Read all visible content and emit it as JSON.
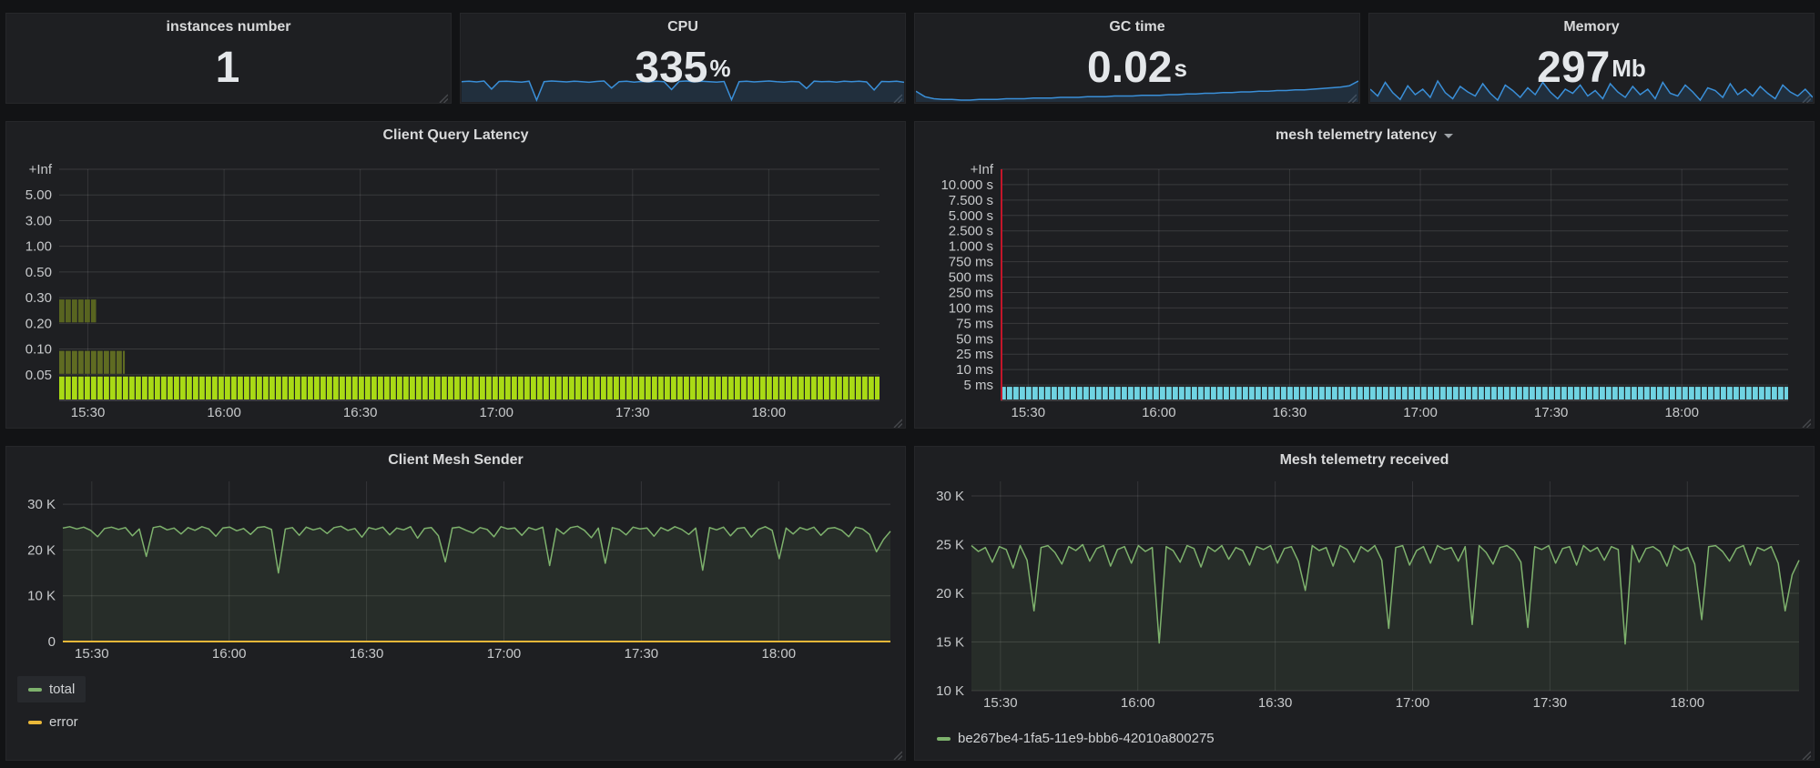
{
  "time_axis": {
    "labels": [
      "15:30",
      "16:00",
      "16:30",
      "17:00",
      "17:30",
      "18:00"
    ],
    "fracs": [
      0.035,
      0.201,
      0.367,
      0.533,
      0.699,
      0.865
    ]
  },
  "chart_data": [
    {
      "type": "stat",
      "id": "instances_number",
      "title": "instances number",
      "value": "1",
      "unit": "",
      "color": "#3a8fd8",
      "fill": "rgba(51,120,190,0.18)",
      "spark": []
    },
    {
      "type": "stat",
      "id": "cpu",
      "title": "CPU",
      "value": "335",
      "unit": "%",
      "color": "#3a8fd8",
      "fill": "rgba(51,120,190,0.18)",
      "spark": [
        334,
        336,
        333,
        337,
        300,
        335,
        336,
        334,
        332,
        336,
        250,
        334,
        337,
        335,
        333,
        336,
        334,
        331,
        335,
        337,
        305,
        334,
        336,
        332,
        335,
        333,
        336,
        334,
        298,
        335,
        337,
        333,
        336,
        334,
        332,
        335,
        252,
        334,
        336,
        333,
        335,
        337,
        334,
        332,
        335,
        333,
        303,
        336,
        334,
        335,
        332,
        336,
        334,
        336,
        333,
        296,
        335,
        334,
        336,
        331
      ]
    },
    {
      "type": "stat",
      "id": "gc_time",
      "title": "GC time",
      "value": "0.02",
      "unit": "s",
      "color": "#3a8fd8",
      "fill": "rgba(51,120,190,0.18)",
      "spark": [
        0.03,
        0.022,
        0.019,
        0.018,
        0.018,
        0.017,
        0.017,
        0.018,
        0.018,
        0.018,
        0.019,
        0.019,
        0.019,
        0.02,
        0.02,
        0.02,
        0.021,
        0.021,
        0.021,
        0.022,
        0.022,
        0.022,
        0.023,
        0.023,
        0.023,
        0.024,
        0.024,
        0.024,
        0.025,
        0.025,
        0.026,
        0.026,
        0.027,
        0.027,
        0.028,
        0.028,
        0.029,
        0.029,
        0.03,
        0.03,
        0.031,
        0.031,
        0.032,
        0.032,
        0.033,
        0.034,
        0.035,
        0.036,
        0.038,
        0.045
      ]
    },
    {
      "type": "stat",
      "id": "memory",
      "title": "Memory",
      "value": "297",
      "unit": "Mb",
      "color": "#3a8fd8",
      "fill": "rgba(51,120,190,0.18)",
      "spark": [
        300,
        290,
        310,
        295,
        285,
        305,
        292,
        300,
        288,
        312,
        295,
        286,
        304,
        296,
        290,
        308,
        294,
        284,
        306,
        298,
        288,
        302,
        292,
        310,
        296,
        286,
        300,
        294,
        306,
        290,
        298,
        286,
        308,
        296,
        288,
        304,
        292,
        300,
        286,
        310,
        294,
        290,
        306,
        296,
        284,
        302,
        298,
        288,
        308,
        292,
        300,
        290,
        304,
        294,
        286,
        306,
        296,
        290,
        300,
        288
      ]
    },
    {
      "type": "heatmap",
      "id": "client_query_latency",
      "title": "Client Query Latency",
      "has_dropdown": false,
      "y_labels": [
        "+Inf",
        "5.00",
        "3.00",
        "1.00",
        "0.50",
        "0.30",
        "0.20",
        "0.10",
        "0.05"
      ],
      "bands": [
        {
          "gap": 0,
          "x0": 0,
          "x1": 1,
          "color": "#a9da15",
          "bucket": "<= 0.05"
        },
        {
          "gap": 1,
          "x0": 0,
          "x1": 0.08,
          "color": "#5f6b22",
          "bucket": "0.05 - 0.10"
        },
        {
          "gap": 3,
          "x0": 0,
          "x1": 0.045,
          "color": "#586420",
          "bucket": "0.20 - 0.30"
        }
      ],
      "axis_line_color": null
    },
    {
      "type": "heatmap",
      "id": "mesh_telemetry_latency",
      "title": "mesh telemetry latency",
      "has_dropdown": true,
      "y_labels": [
        "+Inf",
        "10.000 s",
        "7.500 s",
        "5.000 s",
        "2.500 s",
        "1.000 s",
        "750 ms",
        "500 ms",
        "250 ms",
        "100 ms",
        "75 ms",
        "50 ms",
        "25 ms",
        "10 ms",
        "5 ms"
      ],
      "bands": [
        {
          "gap": 0,
          "x0": 0,
          "x1": 1,
          "color": "#6fd3e2",
          "bucket": "<= 5 ms"
        }
      ],
      "axis_line_color": "#c4162a"
    },
    {
      "type": "line",
      "id": "client_mesh_sender",
      "title": "Client Mesh Sender",
      "ylabel_unit": "K",
      "ylim": [
        0,
        35
      ],
      "y_ticks": [
        {
          "v": 0,
          "label": "0"
        },
        {
          "v": 10,
          "label": "10 K"
        },
        {
          "v": 20,
          "label": "20 K"
        },
        {
          "v": 30,
          "label": "30 K"
        }
      ],
      "series": [
        {
          "name": "total",
          "color": "#7eb26d",
          "fill": "rgba(126,178,109,0.10)",
          "width": 1.5,
          "values": [
            24.8,
            25.1,
            24.6,
            25.0,
            24.3,
            22.9,
            24.7,
            25.0,
            24.5,
            24.9,
            23.1,
            24.6,
            18.6,
            24.9,
            25.2,
            24.4,
            24.8,
            23.5,
            24.9,
            24.3,
            25.1,
            24.6,
            23.0,
            24.8,
            25.0,
            24.2,
            24.7,
            23.4,
            24.9,
            25.1,
            24.5,
            15.0,
            24.6,
            24.9,
            23.2,
            25.0,
            24.4,
            24.8,
            23.6,
            24.9,
            25.2,
            24.3,
            24.7,
            22.8,
            24.9,
            24.5,
            25.0,
            23.3,
            24.8,
            24.4,
            25.1,
            22.6,
            24.7,
            24.9,
            23.1,
            17.4,
            24.8,
            25.0,
            24.3,
            23.7,
            24.9,
            24.5,
            22.9,
            25.1,
            24.6,
            24.8,
            23.2,
            24.9,
            24.4,
            25.0,
            16.6,
            24.7,
            23.5,
            24.9,
            25.2,
            24.3,
            22.7,
            24.8,
            17.1,
            24.9,
            24.5,
            23.3,
            25.0,
            24.6,
            24.8,
            23.0,
            24.9,
            24.2,
            25.1,
            24.5,
            23.4,
            24.8,
            15.6,
            24.9,
            24.4,
            25.0,
            23.1,
            24.7,
            24.9,
            22.8,
            24.5,
            25.1,
            24.3,
            18.1,
            24.8,
            23.5,
            24.9,
            24.4,
            25.0,
            23.2,
            24.7,
            24.9,
            24.3,
            22.9,
            25.0,
            24.6,
            23.4,
            19.6,
            22.3,
            24.1
          ]
        },
        {
          "name": "error",
          "color": "#eab839",
          "fill": null,
          "width": 2,
          "values": [
            0,
            0
          ]
        }
      ],
      "legend": [
        {
          "label": "total",
          "highlighted": true
        },
        {
          "label": "error",
          "highlighted": false
        }
      ]
    },
    {
      "type": "line",
      "id": "mesh_telemetry_received",
      "title": "Mesh telemetry received",
      "ylabel_unit": "K",
      "ylim": [
        10,
        31.5
      ],
      "y_ticks": [
        {
          "v": 10,
          "label": "10 K"
        },
        {
          "v": 15,
          "label": "15 K"
        },
        {
          "v": 20,
          "label": "20 K"
        },
        {
          "v": 25,
          "label": "25 K"
        },
        {
          "v": 30,
          "label": "30 K"
        }
      ],
      "series": [
        {
          "name": "be267be4-1fa5-11e9-bbb6-42010a800275",
          "color": "#7eb26d",
          "fill": "rgba(126,178,109,0.10)",
          "width": 1.5,
          "values": [
            24.9,
            24.3,
            24.7,
            23.2,
            24.8,
            24.5,
            22.6,
            24.9,
            23.4,
            18.2,
            24.7,
            24.9,
            24.2,
            23.0,
            24.8,
            24.4,
            25.0,
            23.3,
            24.6,
            24.9,
            22.8,
            24.5,
            24.8,
            23.1,
            24.9,
            24.3,
            24.7,
            14.9,
            24.8,
            24.4,
            23.2,
            24.9,
            24.6,
            22.7,
            24.8,
            24.3,
            24.9,
            23.5,
            24.7,
            24.4,
            22.9,
            24.8,
            24.5,
            24.9,
            23.1,
            24.6,
            24.8,
            23.3,
            20.3,
            24.9,
            24.4,
            24.7,
            22.8,
            24.9,
            24.5,
            23.2,
            24.8,
            24.3,
            24.9,
            23.4,
            16.4,
            24.7,
            24.9,
            22.9,
            24.4,
            24.8,
            23.1,
            24.9,
            24.5,
            24.7,
            23.3,
            24.8,
            16.8,
            24.9,
            24.2,
            23.0,
            24.7,
            24.9,
            24.4,
            23.2,
            16.5,
            24.8,
            24.5,
            24.9,
            23.1,
            24.6,
            24.8,
            22.9,
            24.9,
            24.3,
            24.7,
            23.4,
            24.8,
            24.5,
            14.8,
            24.9,
            23.2,
            24.6,
            24.8,
            24.3,
            22.8,
            24.9,
            24.4,
            24.7,
            23.0,
            17.3,
            24.8,
            24.9,
            24.3,
            23.3,
            24.6,
            24.9,
            22.9,
            24.7,
            24.4,
            24.8,
            23.1,
            18.2,
            21.9,
            23.4
          ]
        }
      ],
      "legend": [
        {
          "label": "be267be4-1fa5-11e9-bbb6-42010a800275",
          "highlighted": false
        }
      ]
    }
  ]
}
